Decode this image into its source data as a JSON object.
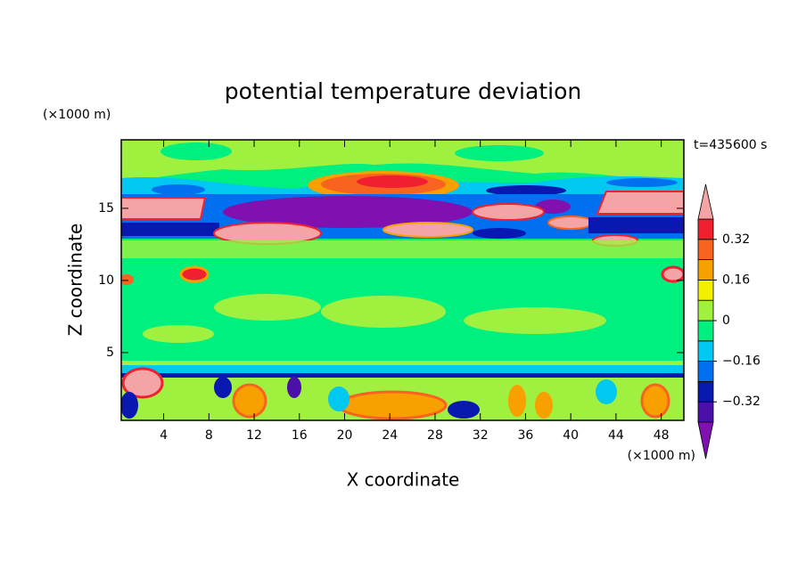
{
  "chart_data": {
    "type": "contour",
    "title": "potential temperature deviation",
    "x_label": "X coordinate",
    "y_label": "Z coordinate",
    "x_unit": "(×1000 m)",
    "y_unit": "(×1000 m)",
    "time_label": "t=435600 s",
    "xlim": [
      0.25,
      50
    ],
    "ylim": [
      0.3,
      19.75
    ],
    "xticks": [
      4,
      8,
      12,
      16,
      20,
      24,
      28,
      32,
      36,
      40,
      44,
      48
    ],
    "yticks": [
      5,
      10,
      15
    ],
    "levels": [
      -0.4,
      -0.32,
      -0.24,
      -0.16,
      -0.08,
      0,
      0.08,
      0.16,
      0.24,
      0.32,
      0.4
    ],
    "colors": [
      "#8010b0",
      "#4a10a8",
      "#0818b0",
      "#0070f0",
      "#00c8f0",
      "#00f080",
      "#a0f040",
      "#f0f000",
      "#f8a000",
      "#f86420",
      "#f02030",
      "#f4a4a4"
    ],
    "colorbar_ticks": [
      {
        "value": -0.32,
        "label": "−0.32"
      },
      {
        "value": -0.16,
        "label": "−0.16"
      },
      0,
      0.16,
      0.32
    ]
  }
}
